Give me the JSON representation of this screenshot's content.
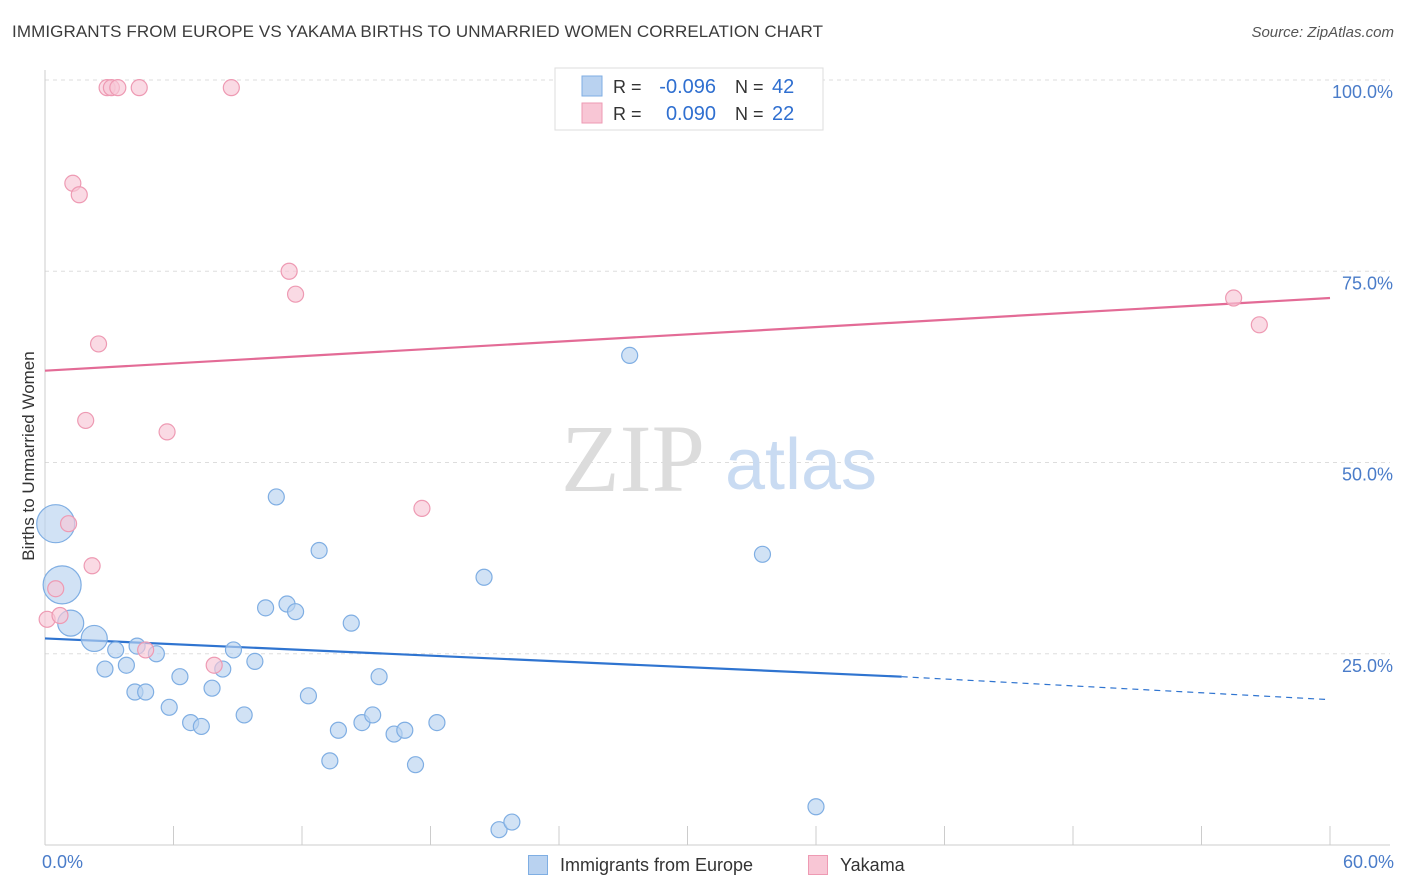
{
  "title": "IMMIGRANTS FROM EUROPE VS YAKAMA BIRTHS TO UNMARRIED WOMEN CORRELATION CHART",
  "source": "Source: ZipAtlas.com",
  "watermark": {
    "zip": "ZIP",
    "atlas": "atlas"
  },
  "colors": {
    "blue_fill": "#b9d2f0",
    "blue_stroke": "#7faee3",
    "blue_line": "#2f74d0",
    "pink_fill": "#f8c6d5",
    "pink_stroke": "#ee9ab3",
    "pink_line": "#e36b96",
    "axis_text": "#4a7cc9",
    "grid": "#dddddd"
  },
  "stats_legend": [
    {
      "r_label": "R =",
      "r_value": "-0.096",
      "n_label": "N =",
      "n_value": "42"
    },
    {
      "r_label": "R =",
      "r_value": "0.090",
      "n_label": "N =",
      "n_value": "22"
    }
  ],
  "chart_data": {
    "type": "scatter",
    "title": "IMMIGRANTS FROM EUROPE VS YAKAMA BIRTHS TO UNMARRIED WOMEN CORRELATION CHART",
    "xlabel": "",
    "ylabel": "Births to Unmarried Women",
    "xlim": [
      0,
      60
    ],
    "ylim": [
      0,
      100
    ],
    "x_tick_labels": [
      "0.0%",
      "60.0%"
    ],
    "y_tick_labels": [
      "100.0%",
      "75.0%",
      "50.0%",
      "25.0%"
    ],
    "y_ticks": [
      100,
      75,
      50,
      25
    ],
    "grid": true,
    "legend_position": "bottom",
    "series": [
      {
        "name": "Immigrants from Europe",
        "color": "#7faee3",
        "points": [
          {
            "x": 0.5,
            "y": 42,
            "big": 2
          },
          {
            "x": 0.8,
            "y": 34,
            "big": 2
          },
          {
            "x": 1.2,
            "y": 29,
            "big": 1
          },
          {
            "x": 2.3,
            "y": 27,
            "big": 1
          },
          {
            "x": 2.8,
            "y": 23
          },
          {
            "x": 3.3,
            "y": 25.5
          },
          {
            "x": 3.8,
            "y": 23.5
          },
          {
            "x": 4.2,
            "y": 20
          },
          {
            "x": 4.7,
            "y": 20
          },
          {
            "x": 5.2,
            "y": 25
          },
          {
            "x": 5.8,
            "y": 18
          },
          {
            "x": 6.3,
            "y": 22
          },
          {
            "x": 6.8,
            "y": 16
          },
          {
            "x": 7.3,
            "y": 15.5
          },
          {
            "x": 7.8,
            "y": 20.5
          },
          {
            "x": 8.3,
            "y": 23
          },
          {
            "x": 8.8,
            "y": 25.5
          },
          {
            "x": 9.3,
            "y": 17
          },
          {
            "x": 9.8,
            "y": 24
          },
          {
            "x": 10.3,
            "y": 31
          },
          {
            "x": 10.8,
            "y": 45.5
          },
          {
            "x": 11.3,
            "y": 31.5
          },
          {
            "x": 11.7,
            "y": 30.5
          },
          {
            "x": 12.3,
            "y": 19.5
          },
          {
            "x": 12.8,
            "y": 38.5
          },
          {
            "x": 13.3,
            "y": 11
          },
          {
            "x": 13.7,
            "y": 15
          },
          {
            "x": 14.3,
            "y": 29
          },
          {
            "x": 14.8,
            "y": 16
          },
          {
            "x": 15.3,
            "y": 17
          },
          {
            "x": 15.6,
            "y": 22
          },
          {
            "x": 16.3,
            "y": 14.5
          },
          {
            "x": 16.8,
            "y": 15
          },
          {
            "x": 17.3,
            "y": 10.5
          },
          {
            "x": 18.3,
            "y": 16
          },
          {
            "x": 20.5,
            "y": 35
          },
          {
            "x": 21.2,
            "y": 2
          },
          {
            "x": 21.8,
            "y": 3
          },
          {
            "x": 27.3,
            "y": 64
          },
          {
            "x": 33.5,
            "y": 38
          },
          {
            "x": 36,
            "y": 5
          },
          {
            "x": 4.3,
            "y": 26
          }
        ],
        "trend": {
          "x0": 0,
          "y0": 27,
          "x1": 40,
          "y1": 22,
          "dash_to_x": 60,
          "dash_to_y": 19
        }
      },
      {
        "name": "Yakama",
        "color": "#ee9ab3",
        "points": [
          {
            "x": 0.1,
            "y": 29.5
          },
          {
            "x": 0.5,
            "y": 33.5
          },
          {
            "x": 0.7,
            "y": 30
          },
          {
            "x": 1.1,
            "y": 42
          },
          {
            "x": 1.3,
            "y": 86.5
          },
          {
            "x": 1.6,
            "y": 85
          },
          {
            "x": 1.9,
            "y": 55.5
          },
          {
            "x": 2.2,
            "y": 36.5
          },
          {
            "x": 2.5,
            "y": 65.5
          },
          {
            "x": 2.9,
            "y": 99
          },
          {
            "x": 3.1,
            "y": 99
          },
          {
            "x": 3.4,
            "y": 99
          },
          {
            "x": 4.4,
            "y": 99
          },
          {
            "x": 4.7,
            "y": 25.5
          },
          {
            "x": 5.7,
            "y": 54
          },
          {
            "x": 7.9,
            "y": 23.5
          },
          {
            "x": 8.7,
            "y": 99
          },
          {
            "x": 11.4,
            "y": 75
          },
          {
            "x": 11.7,
            "y": 72
          },
          {
            "x": 17.6,
            "y": 44
          },
          {
            "x": 55.5,
            "y": 71.5
          },
          {
            "x": 56.7,
            "y": 68
          }
        ],
        "trend": {
          "x0": 0,
          "y0": 62,
          "x1": 60,
          "y1": 71.5
        }
      }
    ]
  }
}
